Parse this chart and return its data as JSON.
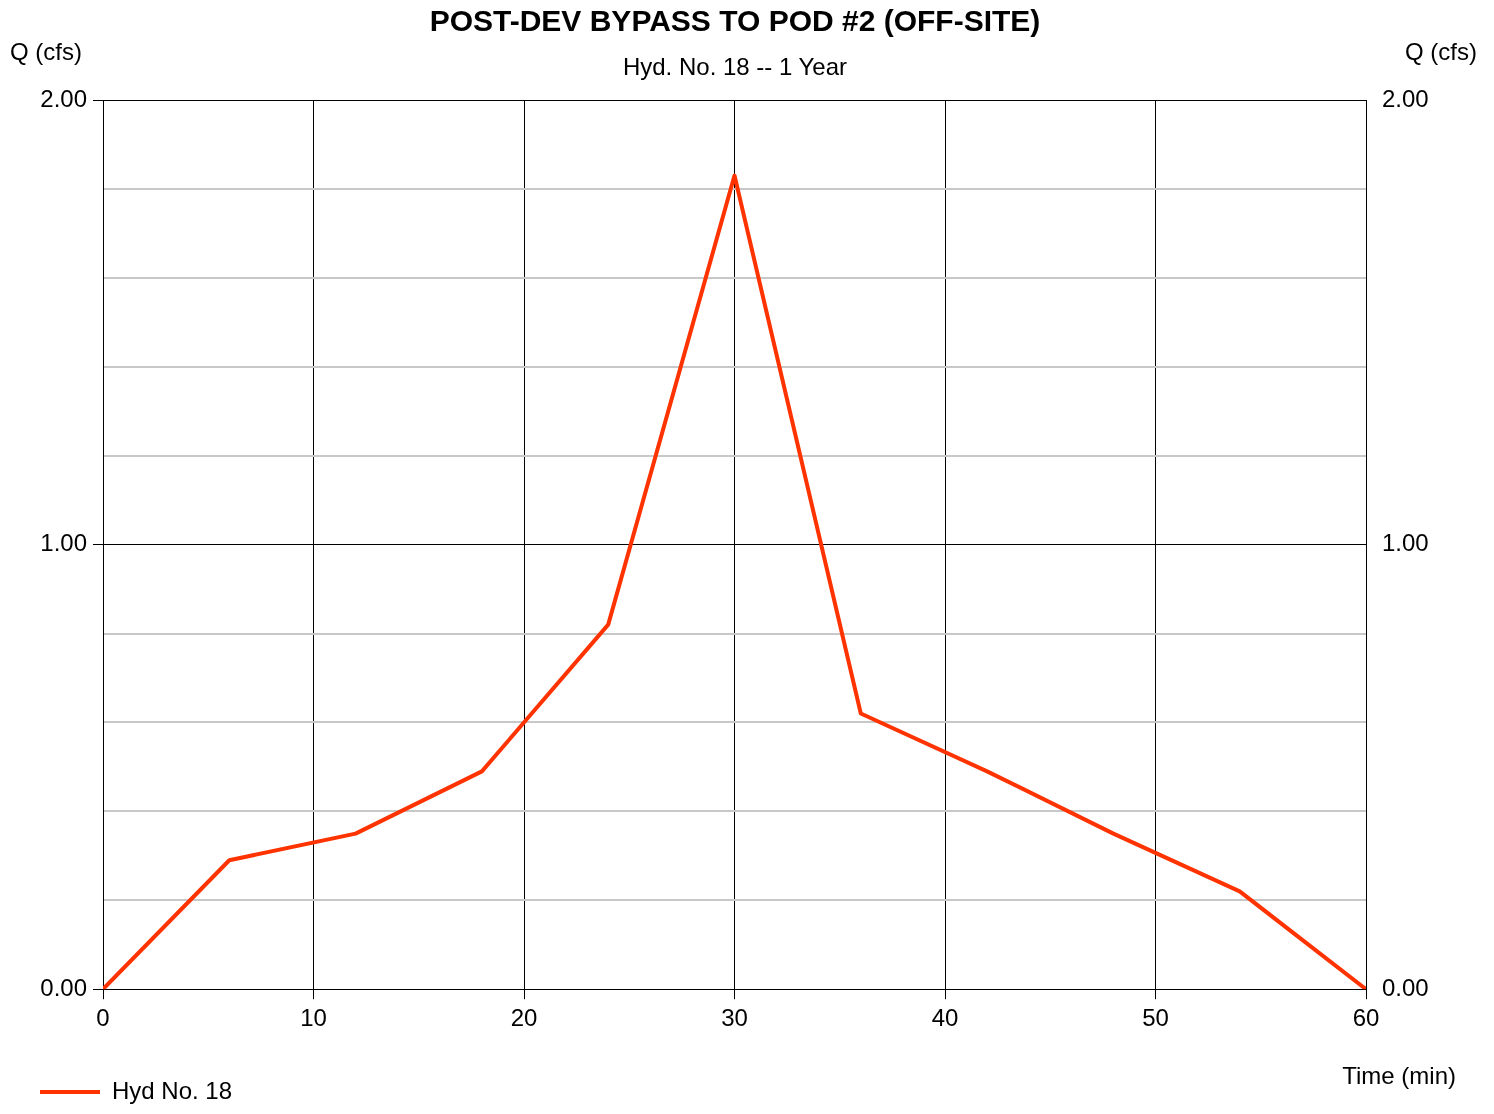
{
  "chart_data": {
    "type": "line",
    "title": "POST-DEV BYPASS TO POD #2 (OFF-SITE)",
    "subtitle": "Hyd. No. 18 -- 1 Year",
    "xlabel": "Time (min)",
    "ylabel": "Q (cfs)",
    "y2label": "Q (cfs)",
    "x": [
      0,
      6,
      12,
      18,
      24,
      30,
      36,
      42,
      48,
      54,
      60
    ],
    "series": [
      {
        "name": "Hyd No. 18",
        "color": "#ff3300",
        "values": [
          0,
          0.29,
          0.35,
          0.49,
          0.82,
          1.83,
          0.62,
          0.49,
          0.35,
          0.22,
          0
        ]
      }
    ],
    "xlim": [
      0,
      60
    ],
    "xticks": [
      0,
      10,
      20,
      30,
      40,
      50,
      60
    ],
    "ylim": [
      0,
      2
    ],
    "yticks": [
      {
        "value": 0,
        "label": "0.00"
      },
      {
        "value": 0.2,
        "label": null
      },
      {
        "value": 0.4,
        "label": null
      },
      {
        "value": 0.6,
        "label": null
      },
      {
        "value": 0.8,
        "label": null
      },
      {
        "value": 1,
        "label": "1.00"
      },
      {
        "value": 1.2,
        "label": null
      },
      {
        "value": 1.4,
        "label": null
      },
      {
        "value": 1.6,
        "label": null
      },
      {
        "value": 1.8,
        "label": null
      },
      {
        "value": 2,
        "label": "2.00"
      }
    ],
    "y2lim": [
      0,
      2
    ],
    "y2ticks": [
      {
        "value": 0,
        "label": "0.00"
      },
      {
        "value": 0.2,
        "label": null
      },
      {
        "value": 0.4,
        "label": null
      },
      {
        "value": 0.6,
        "label": null
      },
      {
        "value": 0.8,
        "label": null
      },
      {
        "value": 1,
        "label": "1.00"
      },
      {
        "value": 1.2,
        "label": null
      },
      {
        "value": 1.4,
        "label": null
      },
      {
        "value": 1.6,
        "label": null
      },
      {
        "value": 1.8,
        "label": null
      },
      {
        "value": 2,
        "label": "2.00"
      }
    ],
    "grid": true,
    "legend": "bottom left",
    "marker": "none",
    "line_style": "solid"
  }
}
